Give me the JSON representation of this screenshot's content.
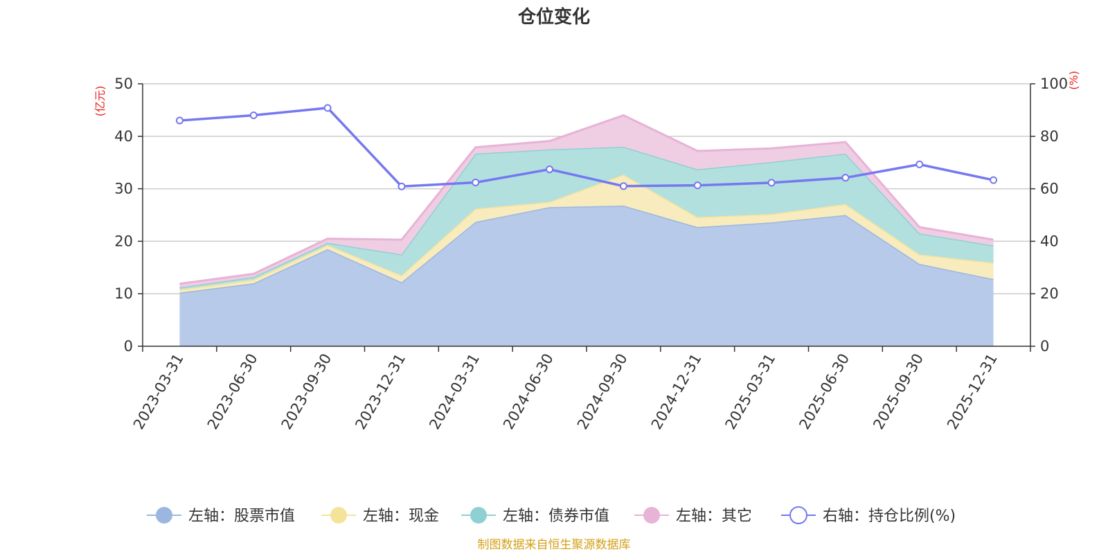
{
  "chart_data": {
    "type": "area",
    "title": "仓位变化",
    "categories": [
      "2023-03-31",
      "2023-06-30",
      "2023-09-30",
      "2023-12-31",
      "2024-03-31",
      "2024-06-30",
      "2024-09-30",
      "2024-12-31",
      "2025-03-31",
      "2025-06-30",
      "2025-09-30",
      "2025-12-31"
    ],
    "left_axis": {
      "unit": "(亿元)",
      "ylim": [
        0,
        50
      ],
      "ticks": [
        "0",
        "10",
        "20",
        "30",
        "40",
        "50"
      ]
    },
    "right_axis": {
      "unit": "(%)",
      "ylim": [
        0,
        100
      ],
      "ticks": [
        "0",
        "20",
        "40",
        "60",
        "80",
        "100"
      ]
    },
    "stacking": "stacked",
    "grid": true,
    "series": [
      {
        "name": "左轴：股票市值",
        "axis": "left",
        "color": "#9bb7e0",
        "fill": "#b7cae9",
        "values": [
          10.2,
          12.0,
          18.5,
          12.2,
          23.7,
          26.5,
          26.8,
          22.7,
          23.6,
          25.0,
          15.7,
          12.8
        ]
      },
      {
        "name": "左轴：现金",
        "axis": "left",
        "color": "#f6e39a",
        "fill": "#f8ebbd",
        "values": [
          0.6,
          0.7,
          0.8,
          1.3,
          2.5,
          1.0,
          5.9,
          1.9,
          1.6,
          2.1,
          1.8,
          3.1
        ]
      },
      {
        "name": "左轴：债券市值",
        "axis": "left",
        "color": "#8fd0d3",
        "fill": "#b2e0df",
        "values": [
          0.4,
          0.5,
          0.4,
          4.0,
          10.5,
          10.0,
          5.3,
          9.1,
          9.9,
          9.6,
          4.0,
          3.3
        ]
      },
      {
        "name": "左轴：其它",
        "axis": "left",
        "color": "#e7b3d6",
        "fill": "#efcde3",
        "values": [
          0.7,
          0.6,
          0.8,
          2.8,
          1.2,
          1.6,
          6.0,
          3.5,
          2.6,
          2.2,
          1.2,
          1.1
        ]
      },
      {
        "name": "右轴：持仓比例(%)",
        "axis": "right",
        "type": "line",
        "color": "#7578f0",
        "values": [
          86.0,
          88.0,
          90.8,
          60.9,
          62.4,
          67.4,
          61.0,
          61.3,
          62.3,
          64.2,
          69.3,
          63.3
        ]
      }
    ]
  },
  "legend": [
    {
      "label": "左轴：股票市值"
    },
    {
      "label": "左轴：现金"
    },
    {
      "label": "左轴：债券市值"
    },
    {
      "label": "左轴：其它"
    },
    {
      "label": "右轴：持仓比例(%)"
    }
  ],
  "source": "制图数据来自恒生聚源数据库",
  "colors": {
    "axis_unit": "#e8201e",
    "source": "#d4a017",
    "grid": "#cccccc",
    "axis": "#333333"
  }
}
